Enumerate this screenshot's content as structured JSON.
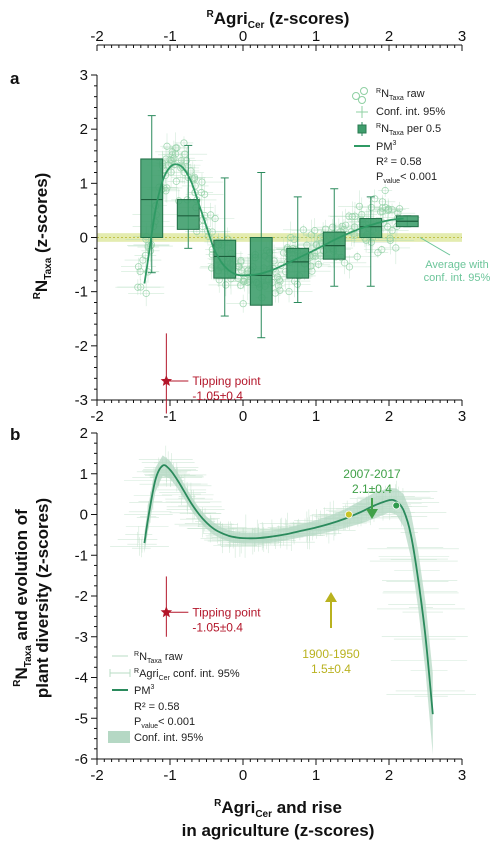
{
  "figure": {
    "top_axis_label_main": "Agri",
    "top_axis_label_pre": "R",
    "top_axis_label_sub": "Cer",
    "top_axis_label_post": " (z-scores)"
  },
  "chart_data": [
    {
      "panel_label": "a",
      "type": "box",
      "xlim": [
        -2,
        3
      ],
      "ylim": [
        -3,
        3
      ],
      "x_ticks": [
        -2,
        -1,
        0,
        1,
        2,
        3
      ],
      "y_ticks": [
        -3,
        -2,
        -1,
        0,
        1,
        2,
        3
      ],
      "ylabel_pre": "R",
      "ylabel_main": "N",
      "ylabel_sub": "Taxa",
      "ylabel_post": " (z-scores)",
      "boxes": [
        {
          "x": -1.25,
          "q1": 0.0,
          "median": 0.7,
          "q3": 1.45,
          "low": -0.65,
          "high": 2.25
        },
        {
          "x": -0.75,
          "q1": 0.15,
          "median": 0.4,
          "q3": 0.7,
          "low": -0.2,
          "high": 1.7
        },
        {
          "x": -0.25,
          "q1": -0.75,
          "median": -0.35,
          "q3": -0.05,
          "low": -1.45,
          "high": 1.1
        },
        {
          "x": 0.25,
          "q1": -1.25,
          "median": -0.7,
          "q3": 0.0,
          "low": -1.85,
          "high": 1.2
        },
        {
          "x": 0.75,
          "q1": -0.75,
          "median": -0.45,
          "q3": -0.2,
          "low": -1.2,
          "high": 0.75
        },
        {
          "x": 1.25,
          "q1": -0.4,
          "median": -0.15,
          "q3": 0.1,
          "low": -0.9,
          "high": 0.9
        },
        {
          "x": 1.75,
          "q1": 0.0,
          "median": 0.2,
          "q3": 0.35,
          "low": -0.9,
          "high": 0.75
        },
        {
          "x": 2.25,
          "q1": 0.2,
          "median": 0.3,
          "q3": 0.4,
          "low": 0.2,
          "high": 0.4
        }
      ],
      "curve": {
        "x": [
          -1.35,
          -1.3,
          -1.2,
          -1.1,
          -1.0,
          -0.9,
          -0.8,
          -0.7,
          -0.6,
          -0.5,
          -0.4,
          -0.3,
          -0.2,
          -0.1,
          0.0,
          0.2,
          0.4,
          0.6,
          0.8,
          1.0,
          1.2,
          1.4,
          1.6,
          1.8,
          2.0,
          2.2
        ],
        "y": [
          -0.85,
          -0.4,
          0.5,
          1.05,
          1.3,
          1.35,
          1.25,
          1.0,
          0.6,
          0.2,
          -0.2,
          -0.45,
          -0.6,
          -0.68,
          -0.7,
          -0.68,
          -0.6,
          -0.48,
          -0.35,
          -0.22,
          -0.08,
          0.05,
          0.16,
          0.25,
          0.32,
          0.35
        ]
      },
      "average": {
        "value": 0.0,
        "ci": 0.08
      },
      "legend": {
        "raw": {
          "pre": "R",
          "main": "N",
          "sub": "Taxa",
          "post": " raw"
        },
        "ci": "Conf. int. 95%",
        "box": {
          "pre": "R",
          "main": "N",
          "sub": "Taxa",
          "post": " per 0.5"
        },
        "pm": {
          "main": "PM",
          "sup": "3"
        },
        "r2": "R² = 0.58",
        "p_main": "P",
        "p_sub": "value",
        "p_post": "< 0.001"
      },
      "annotations": {
        "average_line1": "Average with",
        "average_line2": "conf. int. 95%",
        "tipping_line1": "Tipping point",
        "tipping_line2": "-1.05±0.4",
        "tipping_x": -1.05,
        "tipping_y": -2.65,
        "tipping_err_y": 0.4
      }
    },
    {
      "panel_label": "b",
      "type": "line",
      "xlim": [
        -2,
        3
      ],
      "ylim": [
        -6,
        2
      ],
      "x_ticks": [
        -2,
        -1,
        0,
        1,
        2,
        3
      ],
      "y_ticks": [
        -6,
        -5,
        -4,
        -3,
        -2,
        -1,
        0,
        1,
        2
      ],
      "ylabel_line1_pre": "R",
      "ylabel_line1_main": "N",
      "ylabel_line1_sub": "Taxa",
      "ylabel_line1_post": " and evolution of",
      "ylabel_line2": "plant diversity (z-scores)",
      "xlabel_line1_pre": "R",
      "xlabel_line1_main": "Agri",
      "xlabel_line1_sub": "Cer",
      "xlabel_line1_post": " and rise",
      "xlabel_line2": "in agriculture (z-scores)",
      "curve": {
        "x": [
          -1.35,
          -1.3,
          -1.2,
          -1.1,
          -1.0,
          -0.9,
          -0.8,
          -0.7,
          -0.6,
          -0.5,
          -0.4,
          -0.3,
          -0.2,
          -0.1,
          0.0,
          0.2,
          0.4,
          0.6,
          0.8,
          1.0,
          1.2,
          1.4,
          1.6,
          1.8,
          2.0,
          2.1,
          2.2,
          2.3,
          2.4,
          2.5,
          2.6
        ],
        "y": [
          -0.7,
          -0.1,
          0.85,
          1.2,
          1.1,
          0.85,
          0.55,
          0.25,
          0.0,
          -0.2,
          -0.35,
          -0.45,
          -0.52,
          -0.56,
          -0.58,
          -0.58,
          -0.54,
          -0.48,
          -0.4,
          -0.32,
          -0.22,
          -0.1,
          0.05,
          0.22,
          0.35,
          0.32,
          0.1,
          -0.5,
          -1.6,
          -3.0,
          -4.9
        ]
      },
      "ci_band_halfwidth": [
        0.25,
        0.3,
        0.3,
        0.25,
        0.22,
        0.2,
        0.18,
        0.17,
        0.16,
        0.15,
        0.15,
        0.14,
        0.14,
        0.14,
        0.14,
        0.14,
        0.15,
        0.15,
        0.16,
        0.18,
        0.2,
        0.23,
        0.28,
        0.32,
        0.3,
        0.32,
        0.4,
        0.55,
        0.7,
        0.85,
        1.0
      ],
      "points": [
        {
          "x": 1.45,
          "y": 0.0,
          "color": "#c8c428"
        },
        {
          "x": 2.1,
          "y": 0.22,
          "color": "#2f9b4e"
        }
      ],
      "legend": {
        "raw": {
          "pre": "R",
          "main": "N",
          "sub": "Taxa",
          "post": " raw"
        },
        "ci_cer": {
          "pre": "R",
          "main": "Agri",
          "sub": "Cer",
          "post": " conf. int. 95%"
        },
        "pm": {
          "main": "PM",
          "sup": "3"
        },
        "r2": "R² = 0.58",
        "p_main": "P",
        "p_sub": "value",
        "p_post": "< 0.001",
        "band": "Conf. int. 95%"
      },
      "annotations": {
        "tipping_line1": "Tipping point",
        "tipping_line2": "-1.05±0.4",
        "tipping_x": -1.05,
        "tipping_y": -2.4,
        "tipping_err_y": 0.4,
        "a2007_line1": "2007-2017",
        "a2007_line2": "2.1±0.4",
        "a1900_line1": "1900-1950",
        "a1900_line2": "1.5±0.4"
      }
    }
  ],
  "colors": {
    "dark_green": "#2a8a5c",
    "box_fill": "#3f9e6d",
    "light_green": "#a9d9b8",
    "raw_green": "#8fd0a3",
    "band_green": "#b5d8c4",
    "avg_band": "#e4ecb0",
    "avg_line": "#c2c24a",
    "tipping_red": "#b3162a",
    "label_green": "#3fa047",
    "label_yellow": "#b9b21f",
    "label_light_green": "#6cc59a"
  }
}
